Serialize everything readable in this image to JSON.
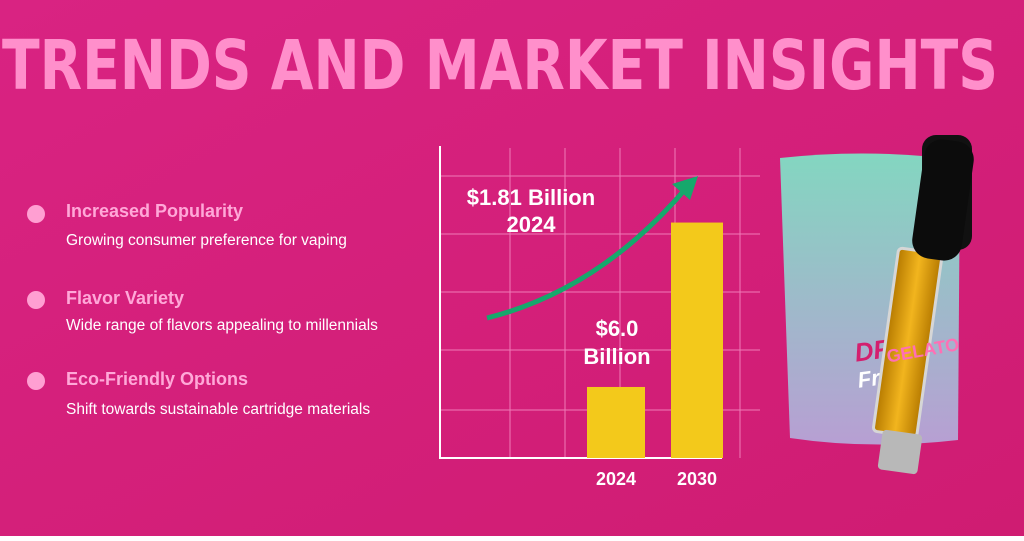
{
  "header": {
    "title": "TRENDS AND MARKET INSIGHTS"
  },
  "points": [
    {
      "title": "Increased Popularity",
      "text": "Growing consumer preference for vaping"
    },
    {
      "title": "Flavor Variety",
      "text": "Wide range of flavors appealing to millennials"
    },
    {
      "title": "Eco-Friendly Options",
      "text": "Shift towards sustainable cartridge materials"
    }
  ],
  "chart_data": {
    "type": "bar",
    "categories": [
      "2024",
      "2030"
    ],
    "values": [
      1.81,
      6.0
    ],
    "color": "#f3c91b",
    "ylim": [
      0,
      7.9
    ],
    "annotations": [
      "$1.81 Billion",
      "2024",
      "$6.0",
      "Billion"
    ]
  }
}
